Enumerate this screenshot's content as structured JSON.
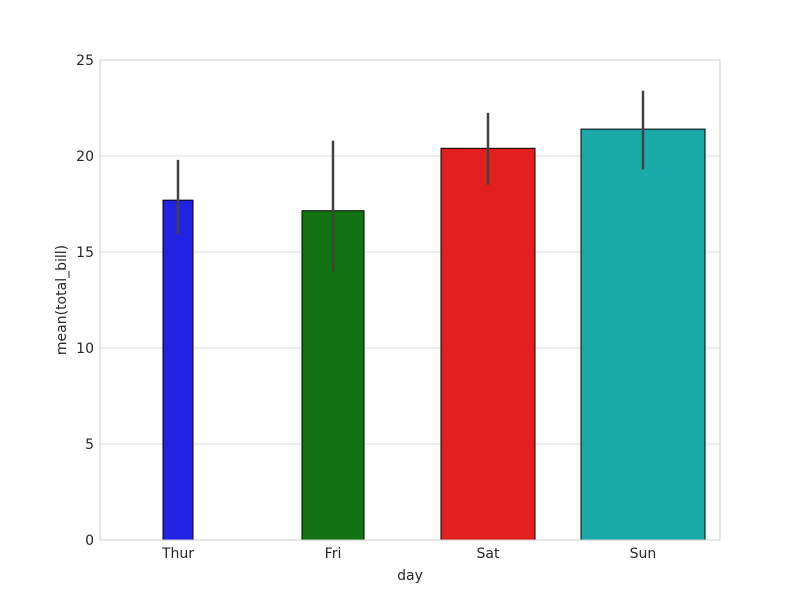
{
  "chart_data": {
    "type": "bar",
    "title": "",
    "xlabel": "day",
    "ylabel": "mean(total_bill)",
    "ylim": [
      0,
      25
    ],
    "yticks": [
      "0",
      "5",
      "10",
      "15",
      "20",
      "25"
    ],
    "categories": [
      "Thur",
      "Fri",
      "Sat",
      "Sun"
    ],
    "values": [
      17.7,
      17.15,
      20.4,
      21.4
    ],
    "error_low": [
      15.9,
      14.0,
      18.5,
      19.3
    ],
    "error_high": [
      19.8,
      20.8,
      22.25,
      23.4
    ],
    "colors": [
      "#2222e4",
      "#117311",
      "#e21f1f",
      "#1aaaaa"
    ],
    "grid": true,
    "legend": "none"
  }
}
